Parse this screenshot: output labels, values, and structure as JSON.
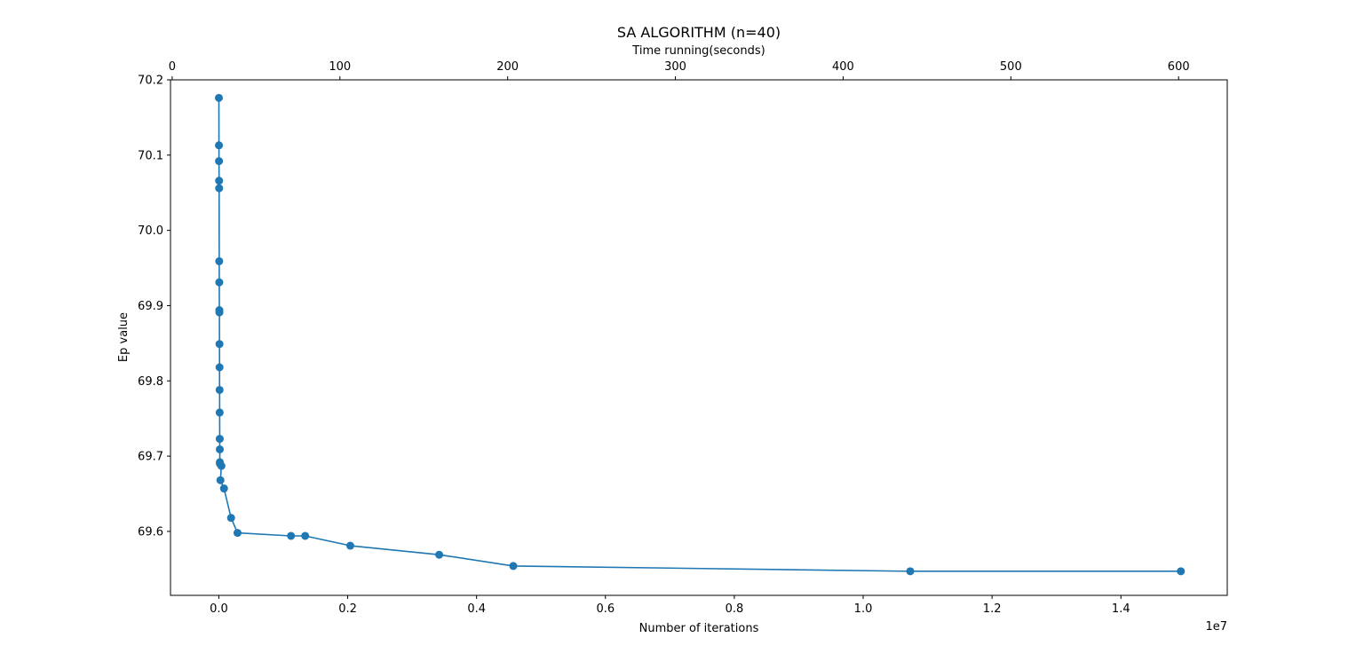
{
  "chart_data": {
    "type": "line",
    "title": "SA ALGORITHM (n=40)",
    "xlabel": "Number of iterations",
    "ylabel": "Ep value",
    "x_offset_label": "1e7",
    "x_top_label": "Time running(seconds)",
    "xlim": [
      -0.075,
      1.565
    ],
    "ylim": [
      69.515,
      70.2
    ],
    "top_xlim": [
      -1.0,
      629.0
    ],
    "x_ticks": [
      0.0,
      0.2,
      0.4,
      0.6,
      0.8,
      1.0,
      1.2,
      1.4
    ],
    "x_tick_labels": [
      "0.0",
      "0.2",
      "0.4",
      "0.6",
      "0.8",
      "1.0",
      "1.2",
      "1.4"
    ],
    "top_x_ticks": [
      0,
      100,
      200,
      300,
      400,
      500,
      600
    ],
    "top_x_tick_labels": [
      "0",
      "100",
      "200",
      "300",
      "400",
      "500",
      "600"
    ],
    "y_ticks": [
      69.6,
      69.7,
      69.8,
      69.9,
      70.0,
      70.1,
      70.2
    ],
    "y_tick_labels": [
      "69.6",
      "69.7",
      "69.8",
      "69.9",
      "70.0",
      "70.1",
      "70.2"
    ],
    "grid": false,
    "color": "#1f77b4",
    "series": [
      {
        "marker": "circle",
        "x": [
          0.0001,
          0.0002,
          0.0003,
          0.0004,
          0.0005,
          0.0006,
          0.0007,
          0.0008,
          0.0009,
          0.001,
          0.0011,
          0.0012,
          0.0013,
          0.0014,
          0.0015,
          0.0016,
          0.0017,
          0.004,
          0.0025,
          0.008,
          0.019,
          0.029,
          0.112,
          0.134,
          0.204,
          0.342,
          0.457,
          1.073,
          1.493
        ],
        "y": [
          70.176,
          70.113,
          70.092,
          70.066,
          70.056,
          69.959,
          69.931,
          69.894,
          69.891,
          69.849,
          69.818,
          69.788,
          69.758,
          69.723,
          69.709,
          69.692,
          69.69,
          69.687,
          69.668,
          69.657,
          69.618,
          69.598,
          69.594,
          69.594,
          69.581,
          69.569,
          69.554,
          69.547,
          69.547
        ]
      }
    ]
  }
}
